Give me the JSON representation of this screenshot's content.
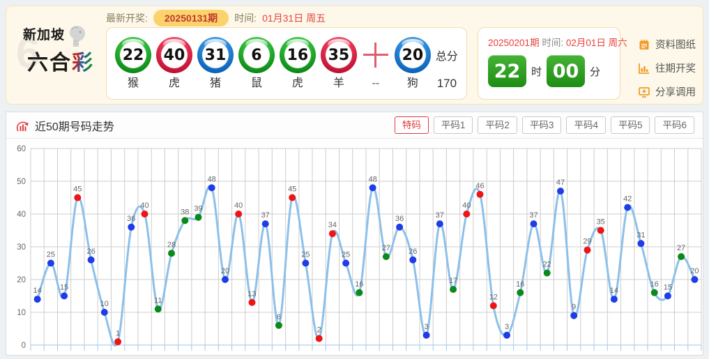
{
  "header": {
    "logo": {
      "line1": "新加坡",
      "line2_part1": "六合",
      "line2_cai": "彩"
    },
    "latest": {
      "label": "最新开奖:",
      "issue": "20250131期",
      "time_label": "时间:",
      "time_value": "01月31日 周五"
    },
    "balls": [
      {
        "num": "22",
        "color": "green",
        "zodiac": "猴"
      },
      {
        "num": "40",
        "color": "red",
        "zodiac": "虎"
      },
      {
        "num": "31",
        "color": "blue",
        "zodiac": "猪"
      },
      {
        "num": "6",
        "color": "green",
        "zodiac": "鼠"
      },
      {
        "num": "16",
        "color": "green",
        "zodiac": "虎"
      },
      {
        "num": "35",
        "color": "red",
        "zodiac": "羊"
      }
    ],
    "plus_sub": "--",
    "special_ball": {
      "num": "20",
      "color": "blue",
      "zodiac": "狗"
    },
    "total": {
      "label": "总分",
      "value": "170"
    },
    "next": {
      "issue": "20250201期",
      "time_label": "时间:",
      "time_value": "02月01日 周六",
      "hour": "22",
      "hour_label": "时",
      "minute": "00",
      "minute_label": "分"
    },
    "links": [
      {
        "label": "资料图纸"
      },
      {
        "label": "往期开奖"
      },
      {
        "label": "分享调用"
      }
    ]
  },
  "chart": {
    "title": "近50期号码走势",
    "tabs": [
      {
        "label": "特码",
        "active": true
      },
      {
        "label": "平码1",
        "active": false
      },
      {
        "label": "平码2",
        "active": false
      },
      {
        "label": "平码3",
        "active": false
      },
      {
        "label": "平码4",
        "active": false
      },
      {
        "label": "平码5",
        "active": false
      },
      {
        "label": "平码6",
        "active": false
      }
    ]
  },
  "chart_data": {
    "type": "line",
    "title": "近50期号码走势",
    "values": [
      14,
      25,
      15,
      45,
      26,
      10,
      1,
      36,
      40,
      11,
      28,
      38,
      39,
      48,
      20,
      40,
      13,
      37,
      6,
      45,
      25,
      2,
      34,
      25,
      16,
      48,
      27,
      36,
      26,
      3,
      37,
      17,
      40,
      46,
      12,
      3,
      16,
      37,
      22,
      47,
      9,
      29,
      35,
      14,
      42,
      31,
      16,
      15,
      27,
      20
    ],
    "point_colors": [
      "blue",
      "blue",
      "blue",
      "red",
      "blue",
      "blue",
      "red",
      "blue",
      "red",
      "green",
      "green",
      "green",
      "green",
      "blue",
      "blue",
      "red",
      "red",
      "blue",
      "green",
      "red",
      "blue",
      "red",
      "red",
      "blue",
      "green",
      "blue",
      "green",
      "blue",
      "blue",
      "blue",
      "blue",
      "green",
      "red",
      "red",
      "red",
      "blue",
      "green",
      "blue",
      "green",
      "blue",
      "blue",
      "red",
      "red",
      "blue",
      "blue",
      "blue",
      "green",
      "blue",
      "green",
      "blue"
    ],
    "ylim": [
      0,
      60
    ],
    "yticks": [
      0,
      10,
      20,
      30,
      40,
      50,
      60
    ],
    "grid": true,
    "legend": "none",
    "colors": {
      "red": "#ee1515",
      "blue": "#1f3ce8",
      "green": "#0a8a1a"
    },
    "line_color": "#8cc0ea",
    "grid_color": "#cccccc",
    "axis_color": "#9ec7e8",
    "label_color": "#666666"
  }
}
